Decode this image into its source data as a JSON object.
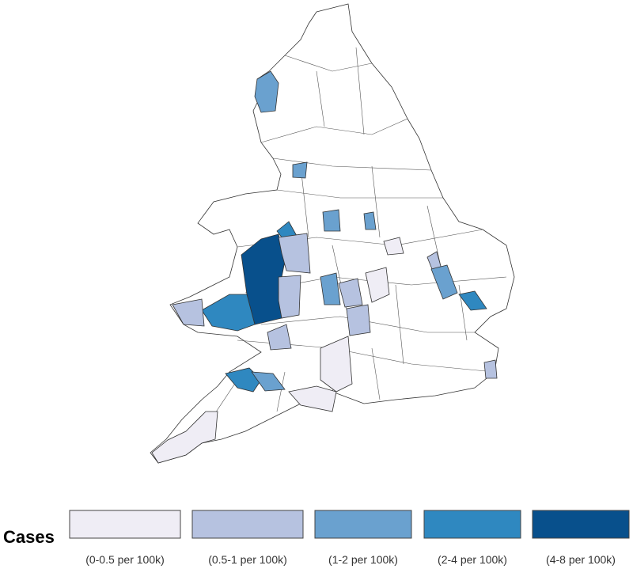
{
  "legend": {
    "title": "Cases",
    "items": [
      {
        "label": "(0-0.5 per 100k)",
        "color": "#efedf5"
      },
      {
        "label": "(0.5-1 per 100k)",
        "color": "#b6c2e0"
      },
      {
        "label": "(1-2 per 100k)",
        "color": "#6aa1cf"
      },
      {
        "label": "(2-4 per 100k)",
        "color": "#2f88c0"
      },
      {
        "label": "(4-8 per 100k)",
        "color": "#08508c"
      }
    ]
  }
}
